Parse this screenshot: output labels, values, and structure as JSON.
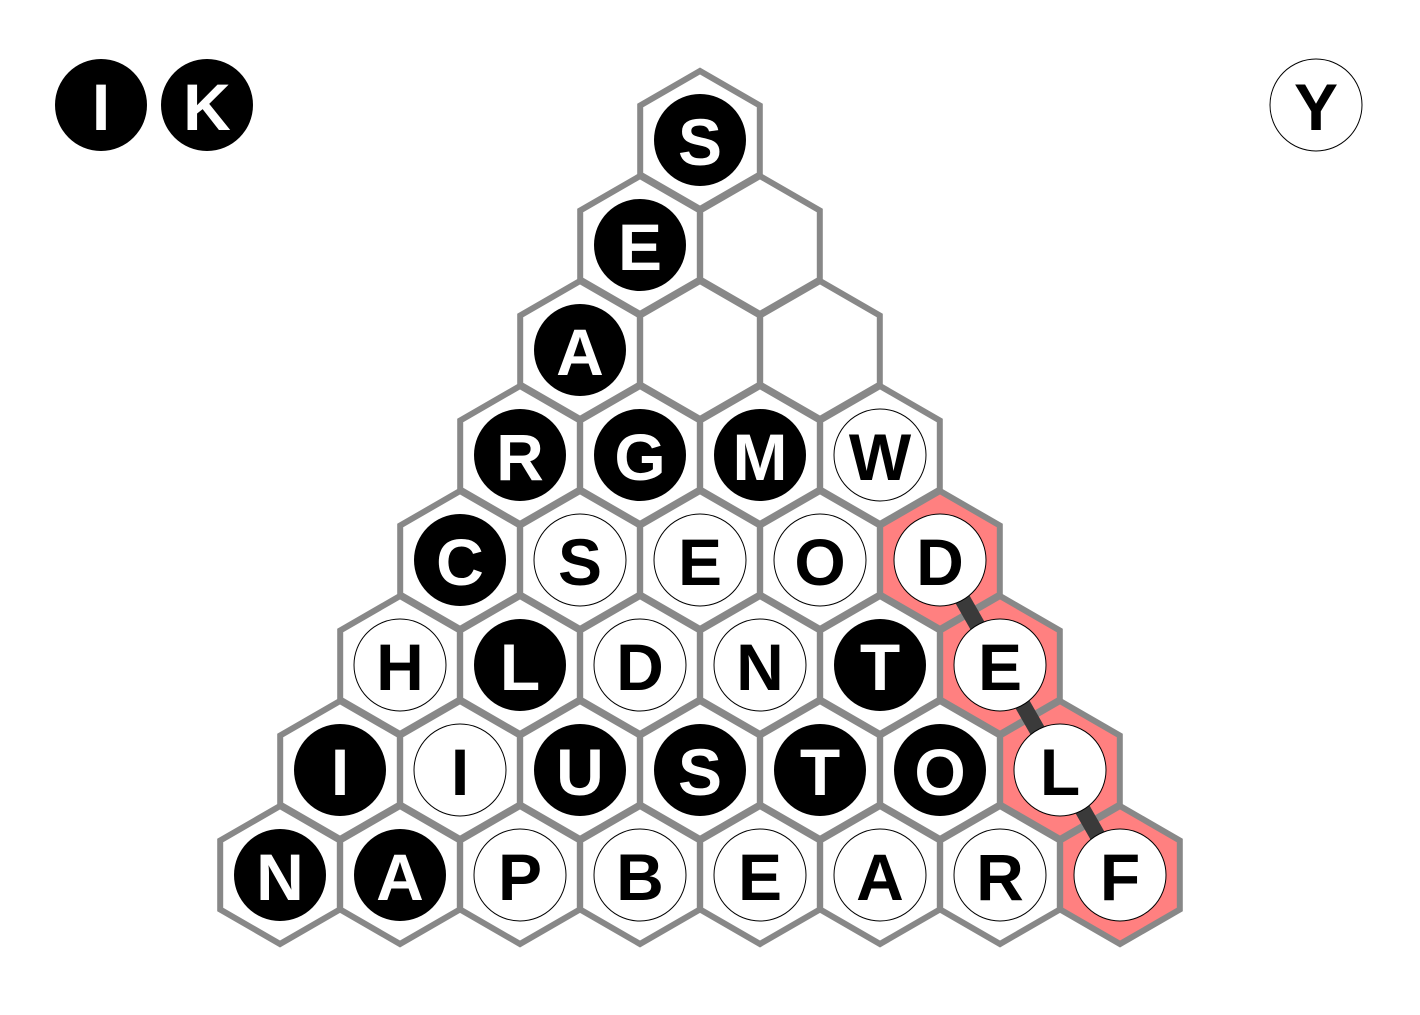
{
  "found_letters": {
    "left": [
      {
        "letter": "I",
        "style": "dark"
      },
      {
        "letter": "K",
        "style": "dark"
      }
    ],
    "right": [
      {
        "letter": "Y",
        "style": "light"
      }
    ]
  },
  "board": {
    "rows": [
      [
        {
          "letter": "S",
          "style": "dark"
        }
      ],
      [
        {
          "letter": "E",
          "style": "dark"
        },
        {
          "letter": "",
          "style": "empty"
        }
      ],
      [
        {
          "letter": "A",
          "style": "dark"
        },
        {
          "letter": "",
          "style": "empty"
        },
        {
          "letter": "",
          "style": "empty"
        }
      ],
      [
        {
          "letter": "R",
          "style": "dark"
        },
        {
          "letter": "G",
          "style": "dark"
        },
        {
          "letter": "M",
          "style": "dark"
        },
        {
          "letter": "W",
          "style": "light"
        }
      ],
      [
        {
          "letter": "C",
          "style": "dark"
        },
        {
          "letter": "S",
          "style": "light"
        },
        {
          "letter": "E",
          "style": "light"
        },
        {
          "letter": "O",
          "style": "light"
        },
        {
          "letter": "D",
          "style": "light",
          "highlight": true
        }
      ],
      [
        {
          "letter": "H",
          "style": "light"
        },
        {
          "letter": "L",
          "style": "dark"
        },
        {
          "letter": "D",
          "style": "light"
        },
        {
          "letter": "N",
          "style": "light"
        },
        {
          "letter": "T",
          "style": "dark"
        },
        {
          "letter": "E",
          "style": "light",
          "highlight": true
        }
      ],
      [
        {
          "letter": "I",
          "style": "dark"
        },
        {
          "letter": "I",
          "style": "light"
        },
        {
          "letter": "U",
          "style": "dark"
        },
        {
          "letter": "S",
          "style": "dark"
        },
        {
          "letter": "T",
          "style": "dark"
        },
        {
          "letter": "O",
          "style": "dark"
        },
        {
          "letter": "L",
          "style": "light",
          "highlight": true
        }
      ],
      [
        {
          "letter": "N",
          "style": "dark"
        },
        {
          "letter": "A",
          "style": "dark"
        },
        {
          "letter": "P",
          "style": "light"
        },
        {
          "letter": "B",
          "style": "light"
        },
        {
          "letter": "E",
          "style": "light"
        },
        {
          "letter": "A",
          "style": "light"
        },
        {
          "letter": "R",
          "style": "light"
        },
        {
          "letter": "F",
          "style": "light",
          "highlight": true
        }
      ]
    ],
    "selected_path": [
      [
        4,
        4
      ],
      [
        5,
        5
      ],
      [
        6,
        6
      ],
      [
        7,
        7
      ]
    ]
  },
  "colors": {
    "hex_stroke": "#888888",
    "highlight": "#ff8080",
    "tile_dark": "#000000",
    "tile_light": "#ffffff",
    "path": "#3a3a3a"
  }
}
